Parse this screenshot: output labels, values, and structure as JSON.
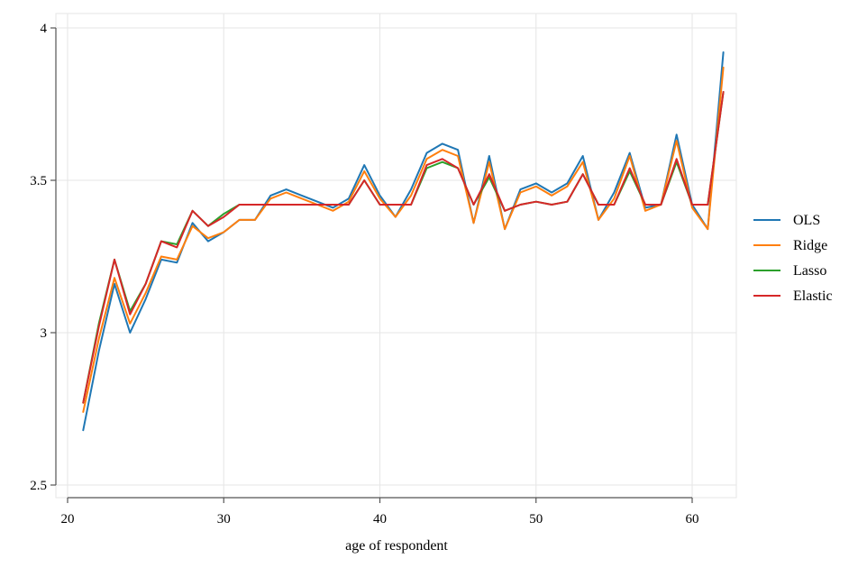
{
  "chart_data": {
    "type": "line",
    "title": "",
    "xlabel": "age of respondent",
    "ylabel": "",
    "xlim": [
      20,
      63
    ],
    "ylim": [
      2.5,
      4.0
    ],
    "xticks": [
      "20",
      "30",
      "40",
      "50",
      "60"
    ],
    "yticks": [
      "2.5",
      "3",
      "3.5",
      "4"
    ],
    "grid": true,
    "legend_position": "right",
    "x": [
      21,
      22,
      23,
      24,
      25,
      26,
      27,
      28,
      29,
      30,
      31,
      32,
      33,
      34,
      35,
      36,
      37,
      38,
      39,
      40,
      41,
      42,
      43,
      44,
      45,
      46,
      47,
      48,
      49,
      50,
      51,
      52,
      53,
      54,
      55,
      56,
      57,
      58,
      59,
      60,
      61,
      62
    ],
    "series": [
      {
        "name": "OLS",
        "color": "#1f77b4",
        "values": [
          2.68,
          2.94,
          3.16,
          3.0,
          3.11,
          3.24,
          3.23,
          3.36,
          3.3,
          3.33,
          3.37,
          3.37,
          3.45,
          3.47,
          3.45,
          3.43,
          3.41,
          3.44,
          3.55,
          3.45,
          3.38,
          3.47,
          3.59,
          3.62,
          3.6,
          3.36,
          3.58,
          3.34,
          3.47,
          3.49,
          3.46,
          3.49,
          3.58,
          3.37,
          3.46,
          3.59,
          3.41,
          3.42,
          3.65,
          3.42,
          3.34,
          3.92
        ]
      },
      {
        "name": "Ridge",
        "color": "#ff7f0e",
        "values": [
          2.74,
          2.98,
          3.18,
          3.03,
          3.13,
          3.25,
          3.24,
          3.35,
          3.31,
          3.33,
          3.37,
          3.37,
          3.44,
          3.46,
          3.44,
          3.42,
          3.4,
          3.43,
          3.53,
          3.44,
          3.38,
          3.45,
          3.57,
          3.6,
          3.58,
          3.36,
          3.56,
          3.34,
          3.46,
          3.48,
          3.45,
          3.48,
          3.56,
          3.37,
          3.44,
          3.58,
          3.4,
          3.42,
          3.63,
          3.41,
          3.34,
          3.87
        ]
      },
      {
        "name": "Lasso",
        "color": "#2ca02c",
        "values": [
          2.77,
          3.03,
          3.24,
          3.07,
          3.16,
          3.3,
          3.29,
          3.4,
          3.35,
          3.39,
          3.42,
          3.42,
          3.42,
          3.42,
          3.42,
          3.42,
          3.42,
          3.42,
          3.5,
          3.42,
          3.42,
          3.42,
          3.54,
          3.56,
          3.54,
          3.42,
          3.51,
          3.4,
          3.42,
          3.43,
          3.42,
          3.43,
          3.52,
          3.42,
          3.42,
          3.53,
          3.42,
          3.42,
          3.56,
          3.42,
          3.42,
          3.79
        ]
      },
      {
        "name": "Elastic",
        "color": "#d62728",
        "values": [
          2.77,
          3.02,
          3.24,
          3.06,
          3.16,
          3.3,
          3.28,
          3.4,
          3.35,
          3.38,
          3.42,
          3.42,
          3.42,
          3.42,
          3.42,
          3.42,
          3.42,
          3.42,
          3.5,
          3.42,
          3.42,
          3.42,
          3.55,
          3.57,
          3.54,
          3.42,
          3.52,
          3.4,
          3.42,
          3.43,
          3.42,
          3.43,
          3.52,
          3.42,
          3.42,
          3.54,
          3.42,
          3.42,
          3.57,
          3.42,
          3.42,
          3.79
        ]
      }
    ]
  }
}
